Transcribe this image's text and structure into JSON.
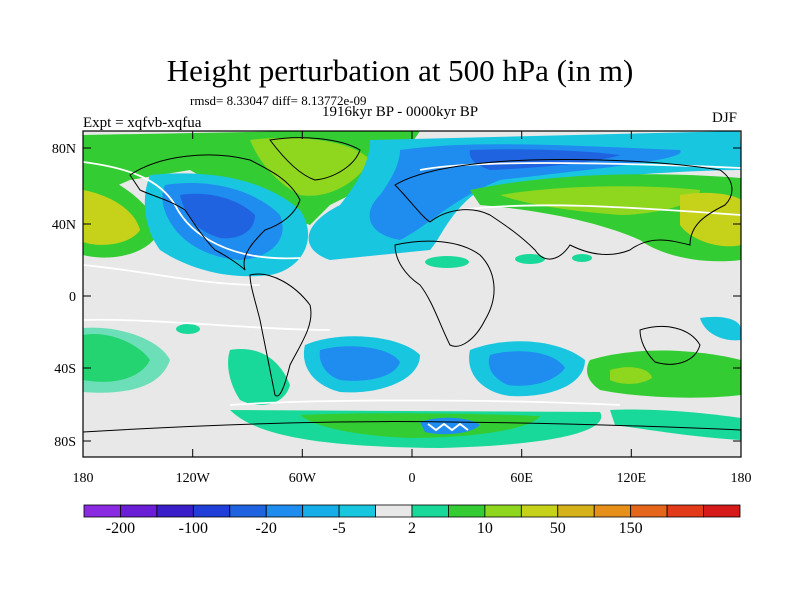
{
  "title": "Height perturbation at 500 hPa (in m)",
  "stats": "rmsd= 8.33047 diff= 8.13772e-09",
  "period": "1916kyr BP - 0000kyr BP",
  "experiment": "Expt = xqfvb-xqfua",
  "season": "DJF",
  "lat_ticks": [
    "80N",
    "40N",
    "0",
    "40S",
    "80S"
  ],
  "lon_ticks": [
    "180",
    "120W",
    "60W",
    "0",
    "60E",
    "120E",
    "180"
  ],
  "colorbar": {
    "labels": [
      "-200",
      "-100",
      "-20",
      "-5",
      "2",
      "10",
      "50",
      "150"
    ],
    "colors": [
      "#8a2be2",
      "#6a1fd6",
      "#3a1fc8",
      "#1f3fd8",
      "#1f63e0",
      "#1f8cf0",
      "#16aee8",
      "#19c6e0",
      "#e8e8e8",
      "#19d99a",
      "#33cc33",
      "#8fd61e",
      "#c6d21a",
      "#d6b21a",
      "#e6901a",
      "#e5661a",
      "#e33a1a",
      "#d61a1a"
    ]
  },
  "palette": {
    "neutral": "#e8e8e8",
    "weak_neg": "#19c6e0",
    "mid_neg": "#1f8cf0",
    "strong_neg": "#1f63e0",
    "weak_pos": "#19d99a",
    "mid_pos": "#33cc33",
    "strong_pos": "#8fd61e",
    "high_pos": "#c6d21a"
  }
}
